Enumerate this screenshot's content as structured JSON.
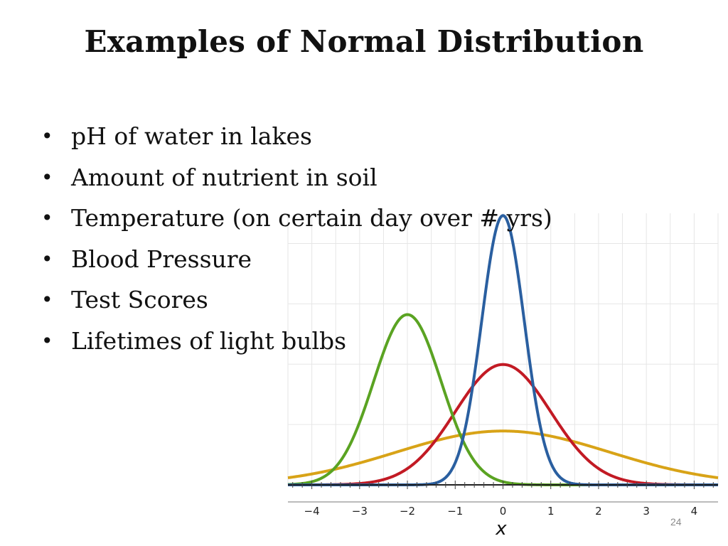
{
  "slide": {
    "title": "Examples of Normal Distribution",
    "bullets": [
      "pH of water in lakes",
      "Amount of nutrient in soil",
      "Temperature (on certain day over # yrs)",
      "Blood Pressure",
      "Test Scores",
      "Lifetimes of light bulbs"
    ],
    "bullet_marker": "•",
    "page_number": "24"
  },
  "chart_data": {
    "type": "line",
    "title": "",
    "xlabel": "x",
    "ylabel": "",
    "xlim": [
      -4.5,
      4.5
    ],
    "ylim": [
      0,
      0.9
    ],
    "xticks": [
      -4,
      -3,
      -2,
      -1,
      0,
      1,
      2,
      3,
      4
    ],
    "xtick_labels": [
      "−4",
      "−3",
      "−2",
      "−1",
      "0",
      "1",
      "2",
      "3",
      "4"
    ],
    "grid": true,
    "legend": false,
    "series": [
      {
        "mean": 0,
        "sd": 0.447,
        "color": "#2a5fa0"
      },
      {
        "mean": 0,
        "sd": 1.0,
        "color": "#c21a24"
      },
      {
        "mean": 0,
        "sd": 2.236,
        "color": "#d8a317"
      },
      {
        "mean": -2,
        "sd": 0.707,
        "color": "#5aa322"
      }
    ]
  }
}
